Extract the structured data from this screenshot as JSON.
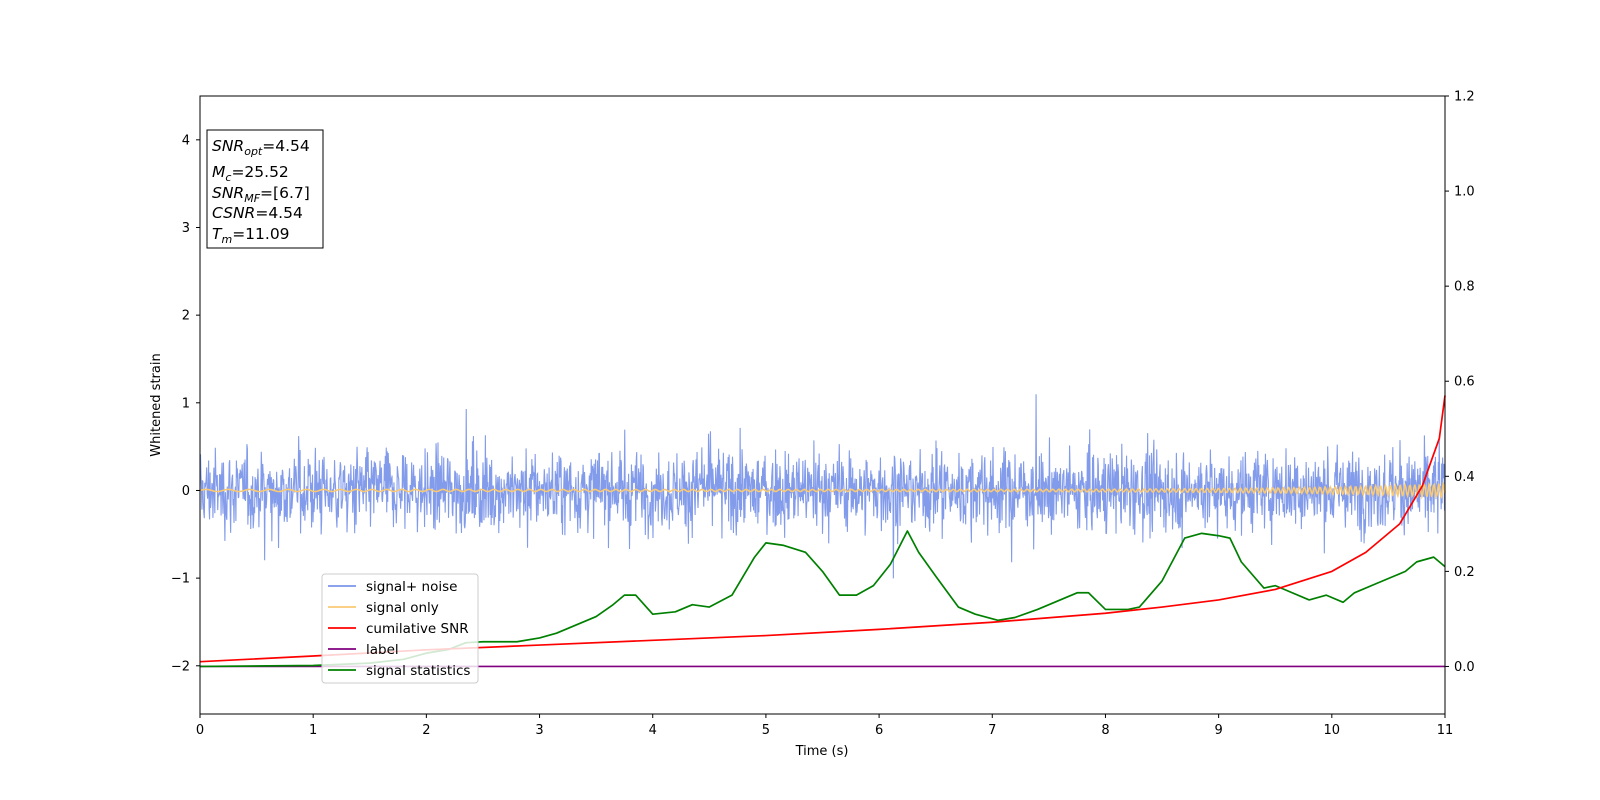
{
  "chart_data": {
    "type": "line",
    "xlabel": "Time (s)",
    "ylabel": "Whitened strain",
    "xlim": [
      0,
      11
    ],
    "ylim": [
      -2.55,
      4.5
    ],
    "ylim_right": [
      -0.1,
      1.2
    ],
    "x_ticks": [
      "0",
      "1",
      "2",
      "3",
      "4",
      "5",
      "6",
      "7",
      "8",
      "9",
      "10",
      "11"
    ],
    "y_ticks": [
      "−2",
      "−1",
      "0",
      "1",
      "2",
      "3",
      "4"
    ],
    "y_ticks_right": [
      "0.0",
      "0.2",
      "0.4",
      "0.6",
      "0.8",
      "1.0",
      "1.2"
    ],
    "grid": false,
    "legend_position": "lower-left",
    "annotation": {
      "snr_opt": {
        "base": "SNR",
        "sub": "opt",
        "value": "=4.54"
      },
      "mc": {
        "base": "M",
        "sub": "c",
        "value": "=25.52"
      },
      "snr_mf": {
        "base": "SNR",
        "sub": "MF",
        "value": "=[6.7]"
      },
      "csnr": {
        "base": "CSNR",
        "value": "=4.54"
      },
      "tm": {
        "base": "T",
        "sub": "m",
        "value": "=11.09"
      }
    },
    "series": [
      {
        "name": "signal+ noise",
        "color": "#7b96e9",
        "axis": "left",
        "style": "noise band",
        "approx_range": [
          -1.25,
          1.22
        ]
      },
      {
        "name": "signal only",
        "color": "#f9c974",
        "axis": "left",
        "style": "chirp near 0",
        "approx_range": [
          -0.08,
          0.08
        ]
      },
      {
        "name": "cumilative SNR",
        "color": "#ff0000",
        "axis": "right",
        "x": [
          0,
          1,
          2,
          3,
          4,
          5,
          6,
          7,
          8,
          8.5,
          9,
          9.5,
          10,
          10.3,
          10.6,
          10.8,
          10.95,
          11
        ],
        "values": [
          0.01,
          0.022,
          0.035,
          0.045,
          0.055,
          0.065,
          0.078,
          0.093,
          0.112,
          0.125,
          0.14,
          0.162,
          0.2,
          0.24,
          0.3,
          0.38,
          0.48,
          0.57
        ]
      },
      {
        "name": "label",
        "color": "#800080",
        "axis": "right",
        "x": [
          0,
          11
        ],
        "values": [
          0.0,
          0.0
        ]
      },
      {
        "name": "signal statistics",
        "color": "#008000",
        "axis": "right",
        "x": [
          0,
          1,
          1.5,
          1.8,
          2.0,
          2.2,
          2.35,
          2.5,
          2.8,
          3.0,
          3.15,
          3.3,
          3.5,
          3.65,
          3.75,
          3.85,
          4.0,
          4.2,
          4.35,
          4.5,
          4.7,
          4.9,
          5.0,
          5.15,
          5.35,
          5.5,
          5.65,
          5.8,
          5.95,
          6.1,
          6.25,
          6.35,
          6.5,
          6.7,
          6.85,
          7.05,
          7.2,
          7.4,
          7.6,
          7.75,
          7.85,
          8.0,
          8.2,
          8.3,
          8.5,
          8.7,
          8.85,
          9.0,
          9.1,
          9.2,
          9.4,
          9.5,
          9.6,
          9.8,
          9.95,
          10.1,
          10.2,
          10.4,
          10.55,
          10.65,
          10.75,
          10.9,
          11.0
        ],
        "values": [
          0.0,
          0.002,
          0.007,
          0.015,
          0.028,
          0.036,
          0.05,
          0.052,
          0.052,
          0.06,
          0.07,
          0.085,
          0.105,
          0.13,
          0.15,
          0.15,
          0.11,
          0.115,
          0.13,
          0.125,
          0.15,
          0.23,
          0.26,
          0.255,
          0.24,
          0.2,
          0.15,
          0.15,
          0.17,
          0.215,
          0.285,
          0.24,
          0.19,
          0.125,
          0.11,
          0.097,
          0.103,
          0.12,
          0.14,
          0.155,
          0.155,
          0.12,
          0.12,
          0.125,
          0.18,
          0.27,
          0.28,
          0.275,
          0.27,
          0.22,
          0.165,
          0.17,
          0.16,
          0.14,
          0.15,
          0.135,
          0.155,
          0.175,
          0.19,
          0.2,
          0.22,
          0.23,
          0.21
        ]
      }
    ]
  }
}
